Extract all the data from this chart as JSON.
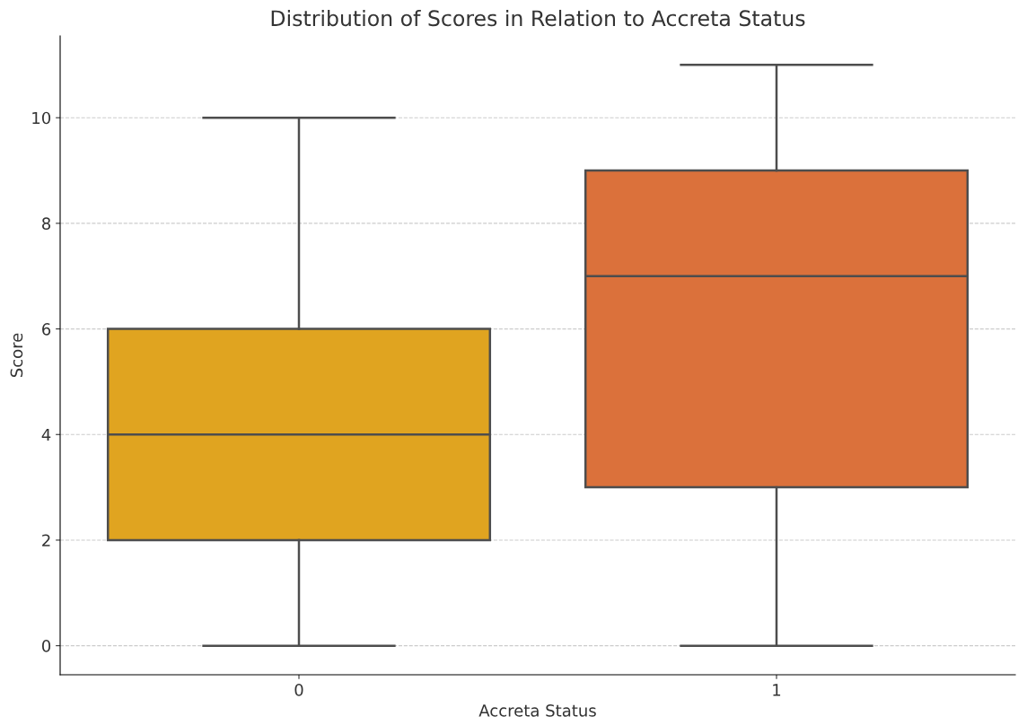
{
  "chart_data": {
    "type": "box",
    "title": "Distribution of Scores in Relation to Accreta Status",
    "xlabel": "Accreta Status",
    "ylabel": "Score",
    "categories": [
      "0",
      "1"
    ],
    "boxes": [
      {
        "low": 0,
        "q1": 2,
        "median": 4,
        "q3": 6,
        "high": 10
      },
      {
        "low": 0,
        "q1": 3,
        "median": 7,
        "q3": 9,
        "high": 11
      }
    ],
    "colors": [
      "#e0a420",
      "#db713b"
    ],
    "ylim": [
      -0.55,
      11.55
    ],
    "yticks": [
      0,
      2,
      4,
      6,
      8,
      10
    ],
    "grid": "y"
  }
}
